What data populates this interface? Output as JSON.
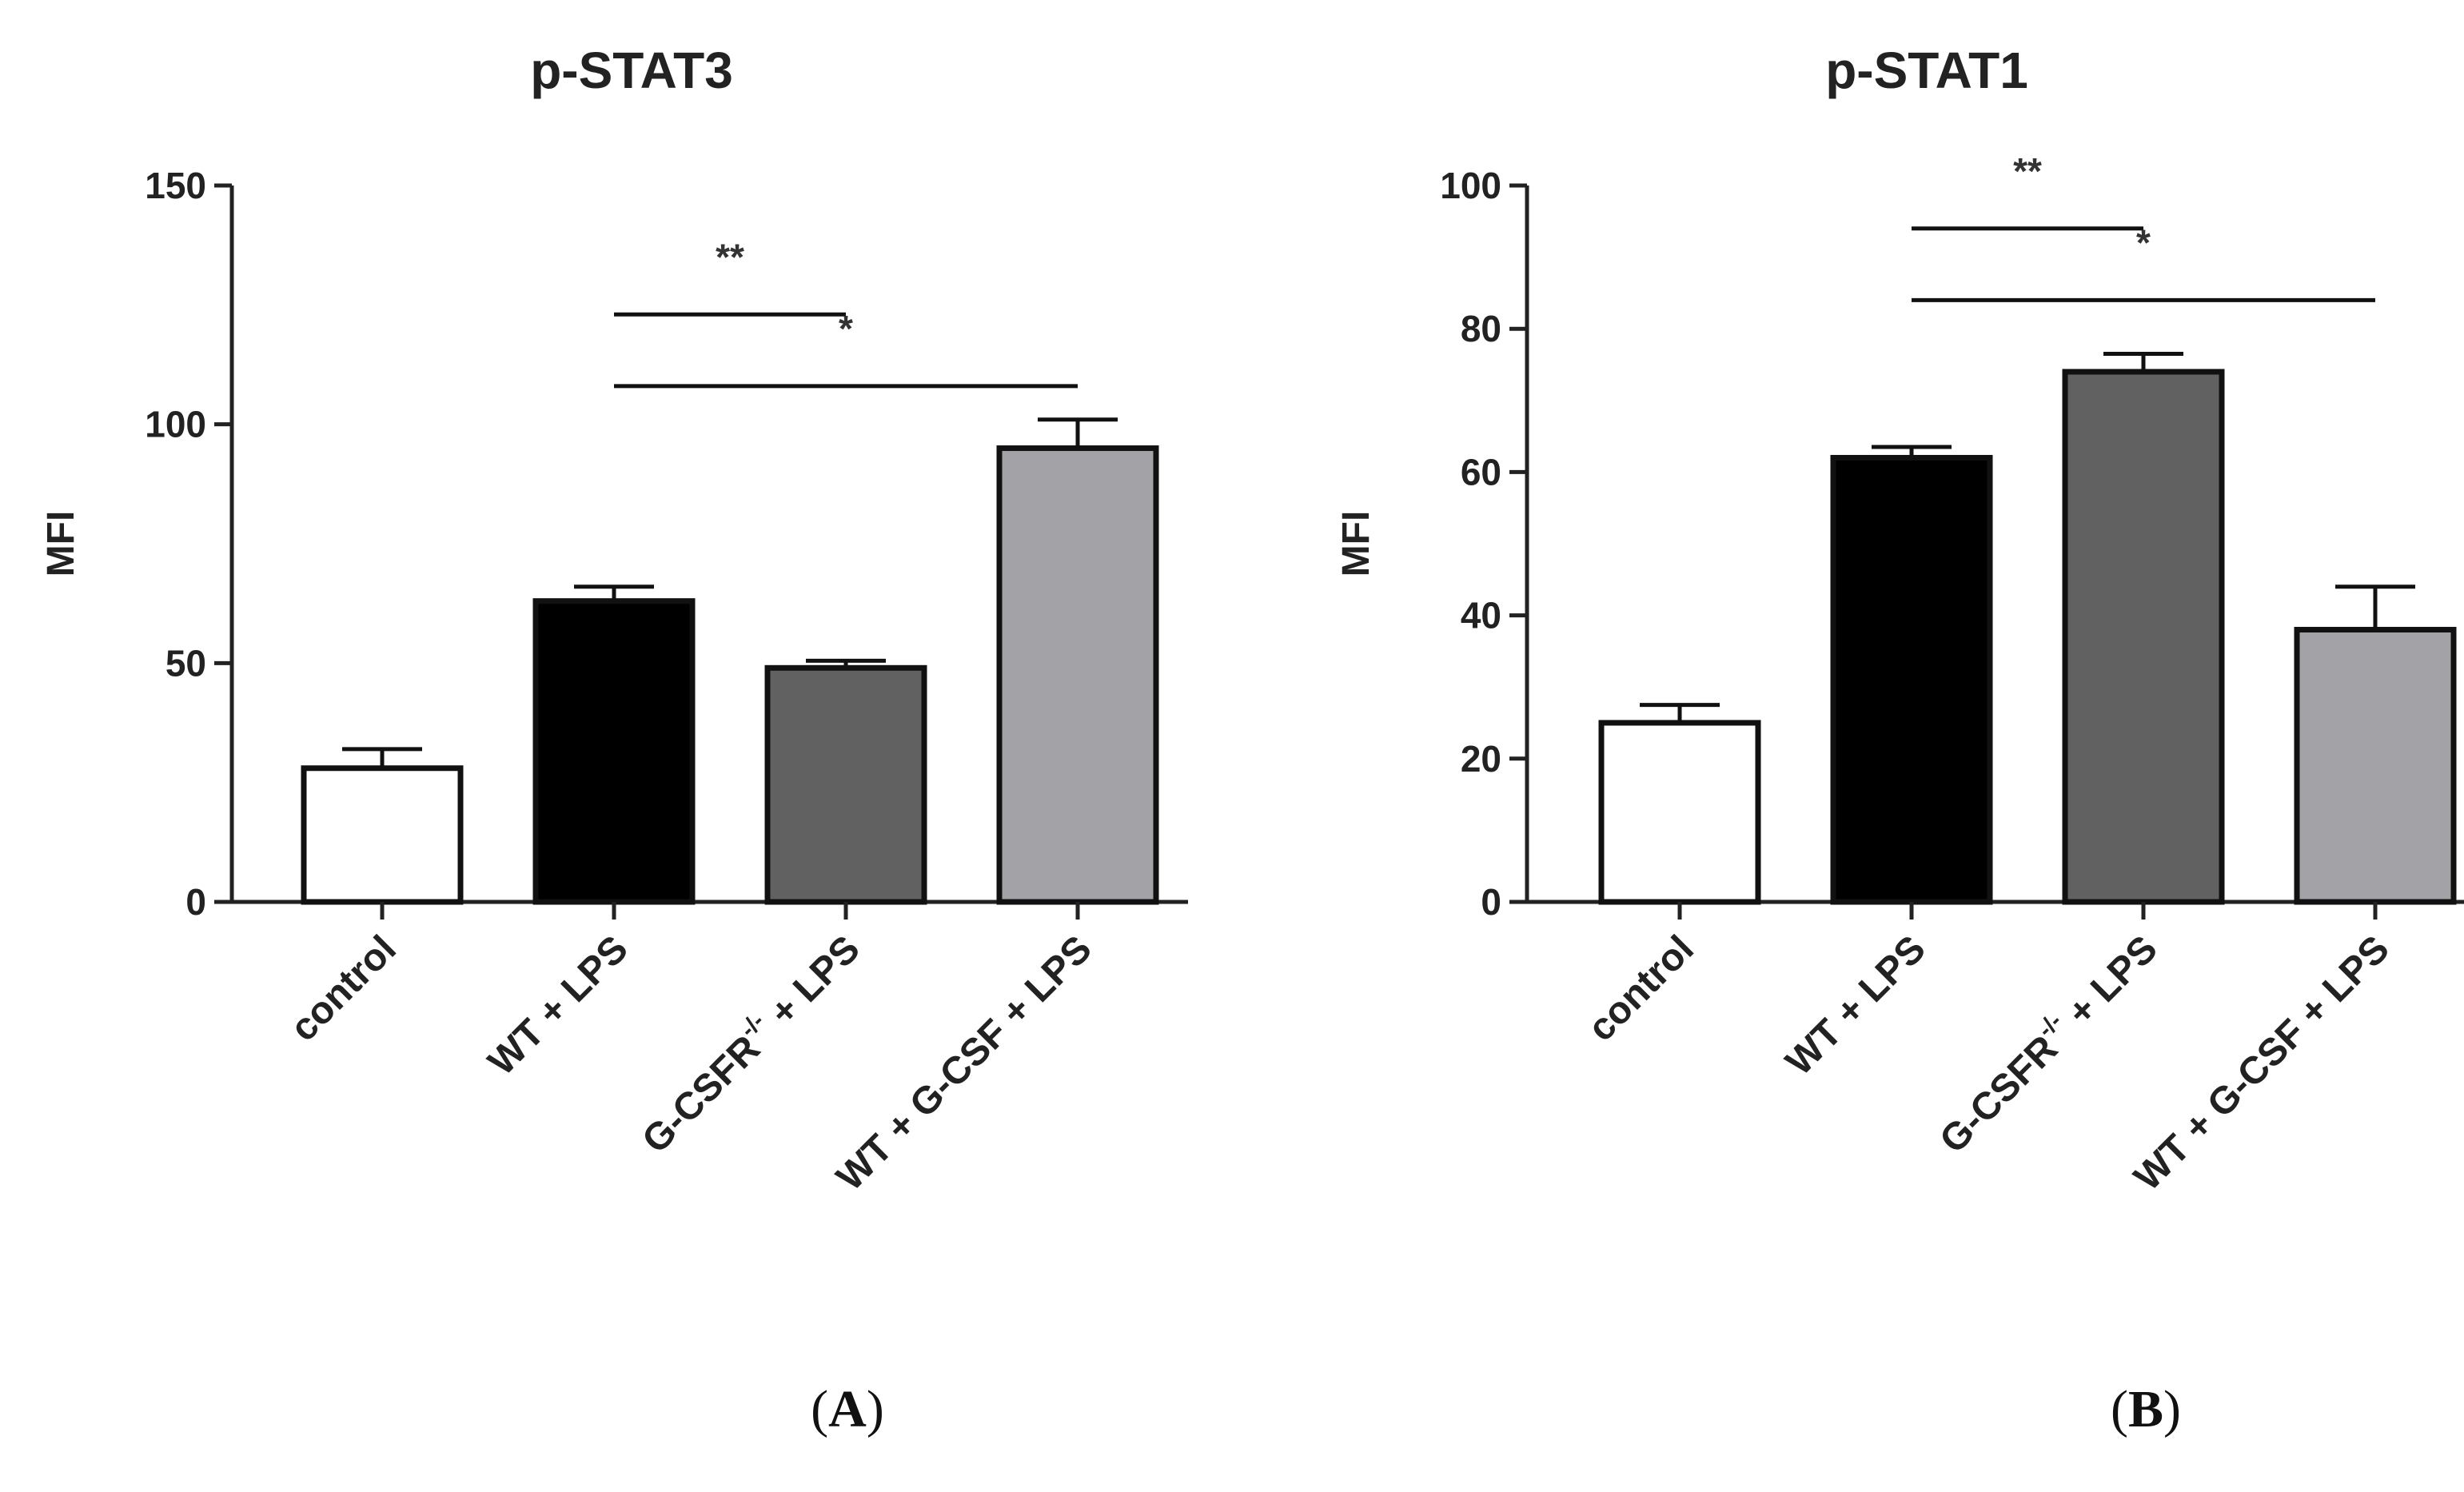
{
  "chart_data": [
    {
      "type": "bar",
      "panel_label": "A",
      "title": "p-STAT3",
      "ylabel": "MFI",
      "xlabel": "",
      "ylim": [
        0,
        150
      ],
      "yticks": [
        0,
        50,
        100,
        150
      ],
      "categories": [
        {
          "base": "control",
          "sup": "",
          "rest": ""
        },
        {
          "base": "WT + LPS",
          "sup": "",
          "rest": ""
        },
        {
          "base": "G-CSFR",
          "sup": "-/-",
          "rest": " + LPS"
        },
        {
          "base": "WT + G-CSF + LPS",
          "sup": "",
          "rest": ""
        }
      ],
      "values": [
        28,
        63,
        49,
        95
      ],
      "errors": [
        4,
        3,
        1.5,
        6
      ],
      "colors": [
        "#ffffff",
        "#000000",
        "#616161",
        "#a3a3a7"
      ],
      "significance": [
        {
          "from": 1,
          "to": 2,
          "label": "**",
          "y": 123
        },
        {
          "from": 1,
          "to": 3,
          "label": "*",
          "y": 108
        }
      ]
    },
    {
      "type": "bar",
      "panel_label": "B",
      "title": "p-STAT1",
      "ylabel": "MFI",
      "xlabel": "",
      "ylim": [
        0,
        100
      ],
      "yticks": [
        0,
        20,
        40,
        60,
        80,
        100
      ],
      "categories": [
        {
          "base": "control",
          "sup": "",
          "rest": ""
        },
        {
          "base": "WT + LPS",
          "sup": "",
          "rest": ""
        },
        {
          "base": "G-CSFR",
          "sup": "-/-",
          "rest": " + LPS"
        },
        {
          "base": "WT + G-CSF + LPS",
          "sup": "",
          "rest": ""
        }
      ],
      "values": [
        25,
        62,
        74,
        38
      ],
      "errors": [
        2.5,
        1.5,
        2.5,
        6
      ],
      "colors": [
        "#ffffff",
        "#000000",
        "#616161",
        "#a3a3a7"
      ],
      "significance": [
        {
          "from": 1,
          "to": 2,
          "label": "**",
          "y": 94
        },
        {
          "from": 1,
          "to": 3,
          "label": "*",
          "y": 84
        }
      ]
    }
  ]
}
